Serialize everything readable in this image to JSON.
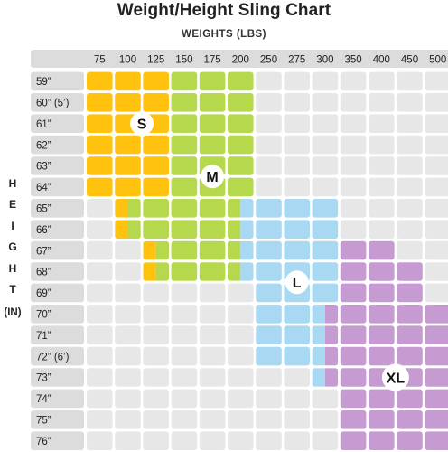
{
  "chart_data": {
    "type": "heatmap",
    "title": "Weight/Height Sling Chart",
    "xlabel": "WEIGHTS (LBS)",
    "ylabel_letters": [
      "H",
      "E",
      "I",
      "G",
      "H",
      "T"
    ],
    "ylabel_unit": "(IN)",
    "weights": [
      "75",
      "100",
      "125",
      "150",
      "175",
      "200",
      "250",
      "275",
      "300",
      "350",
      "400",
      "450",
      "500"
    ],
    "heights": [
      "59”",
      "60” (5’)",
      "61”",
      "62”",
      "63”",
      "64”",
      "65”",
      "66”",
      "67”",
      "68”",
      "69”",
      "70”",
      "71”",
      "72” (6’)",
      "73”",
      "74”",
      "75”",
      "76”"
    ],
    "sizes": [
      {
        "name": "S",
        "color": "#FFC20E",
        "ranges": [
          [
            0,
            2
          ],
          [
            0,
            2
          ],
          [
            0,
            2
          ],
          [
            0,
            2
          ],
          [
            0,
            2
          ],
          [
            0,
            2
          ],
          [
            1,
            2
          ],
          [
            1,
            2
          ],
          [
            2,
            2
          ],
          [
            2,
            2
          ]
        ]
      },
      {
        "name": "M",
        "color": "#B5D84C",
        "ranges": [
          [
            3,
            5
          ],
          [
            3,
            5
          ],
          [
            3,
            5
          ],
          [
            3,
            5
          ],
          [
            3,
            5
          ],
          [
            3,
            5
          ],
          [
            2,
            5
          ],
          [
            2,
            5
          ],
          [
            2,
            5
          ],
          [
            2,
            5
          ]
        ]
      },
      {
        "name": "L",
        "color": "#A8D8F2",
        "ranges": [
          null,
          null,
          null,
          null,
          null,
          null,
          [
            5,
            8
          ],
          [
            5,
            8
          ],
          [
            5,
            8
          ],
          [
            5,
            8
          ],
          [
            6,
            8
          ],
          [
            6,
            8
          ],
          [
            6,
            8
          ],
          [
            6,
            8
          ],
          [
            8,
            8
          ]
        ]
      },
      {
        "name": "XL",
        "color": "#C59BD1",
        "ranges": [
          null,
          null,
          null,
          null,
          null,
          null,
          null,
          null,
          [
            9,
            10
          ],
          [
            9,
            11
          ],
          [
            9,
            11
          ],
          [
            8,
            12
          ],
          [
            8,
            12
          ],
          [
            8,
            12
          ],
          [
            8,
            12
          ],
          [
            9,
            12
          ],
          [
            9,
            12
          ],
          [
            9,
            12
          ]
        ]
      }
    ],
    "overlaps": [
      {
        "row": 6,
        "col": 1,
        "colors": [
          "#FFC20E",
          "#B5D84C"
        ]
      },
      {
        "row": 7,
        "col": 1,
        "colors": [
          "#FFC20E",
          "#B5D84C"
        ]
      },
      {
        "row": 8,
        "col": 2,
        "colors": [
          "#FFC20E",
          "#B5D84C"
        ]
      },
      {
        "row": 9,
        "col": 2,
        "colors": [
          "#FFC20E",
          "#B5D84C"
        ]
      },
      {
        "row": 6,
        "col": 5,
        "colors": [
          "#B5D84C",
          "#A8D8F2"
        ]
      },
      {
        "row": 7,
        "col": 5,
        "colors": [
          "#B5D84C",
          "#A8D8F2"
        ]
      },
      {
        "row": 8,
        "col": 5,
        "colors": [
          "#B5D84C",
          "#A8D8F2"
        ]
      },
      {
        "row": 9,
        "col": 5,
        "colors": [
          "#B5D84C",
          "#A8D8F2"
        ]
      },
      {
        "row": 11,
        "col": 8,
        "colors": [
          "#A8D8F2",
          "#C59BD1"
        ]
      },
      {
        "row": 12,
        "col": 8,
        "colors": [
          "#A8D8F2",
          "#C59BD1"
        ]
      },
      {
        "row": 13,
        "col": 8,
        "colors": [
          "#A8D8F2",
          "#C59BD1"
        ]
      },
      {
        "row": 14,
        "col": 8,
        "colors": [
          "#A8D8F2",
          "#C59BD1"
        ]
      }
    ],
    "size_label_cells": {
      "S": [
        2,
        1.5
      ],
      "M": [
        4.5,
        4.0
      ],
      "L": [
        9.5,
        7.0
      ],
      "XL": [
        14.0,
        10.5
      ]
    },
    "empty_color": "#E7E7E7",
    "header_color": "#DCDCDC"
  }
}
